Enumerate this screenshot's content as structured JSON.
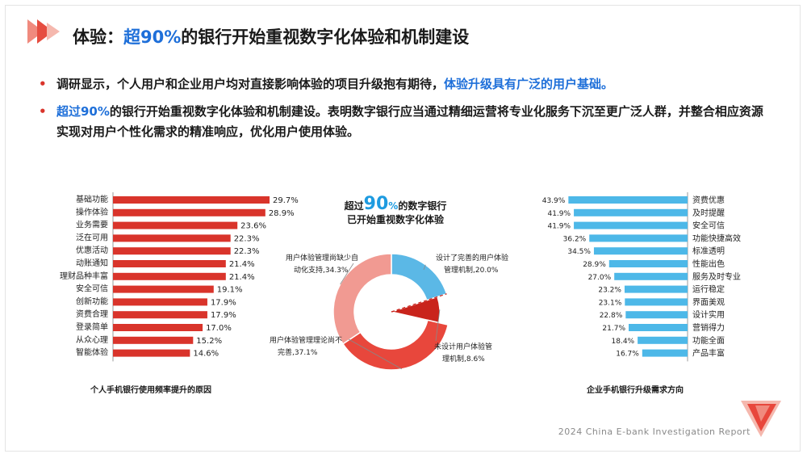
{
  "header": {
    "title_prefix": "体验：",
    "title_highlight": "超90%",
    "title_suffix": "的银行开始重视数字化体验和机制建设"
  },
  "bullets": [
    {
      "text": "调研显示，个人用户和企业用户均对直接影响体验的项目升级抱有期待，",
      "highlight": "体验升级具有广泛的用户基础。"
    },
    {
      "highlight": "超过90%",
      "text": "的银行开始重视数字化体验和机制建设。表明数字银行应当通过精细运营将专业化服务下沉至更广泛人群，并整合相应资源实现对用户个性化需求的精准响应，优化用户使用体验。"
    }
  ],
  "center_title": {
    "prefix": "超过",
    "big": "90",
    "pct": "%",
    "suffix": "的数字银行",
    "line2": "已开始重视数字化体验"
  },
  "footer": {
    "text": "2024 China E-bank Investigation Report"
  },
  "colors": {
    "red": "#d9342b",
    "blue": "#4db8e8",
    "title_blue": "#1e6fd9",
    "pie_pink": "#f19a92",
    "pie_blue": "#5bb8e6",
    "pie_red": "#e8473c",
    "pie_dark_red": "#c9241c"
  },
  "chart_data": [
    {
      "type": "bar",
      "orientation": "horizontal",
      "caption": "个人手机银行使用频率提升的原因",
      "categories": [
        "基础功能",
        "操作体验",
        "业务需要",
        "泛在可用",
        "优惠活动",
        "动账通知",
        "理财品种丰富",
        "安全可信",
        "创新功能",
        "资费合理",
        "登录简单",
        "从众心理",
        "智能体验"
      ],
      "values": [
        29.7,
        28.9,
        23.6,
        22.3,
        22.3,
        21.4,
        21.4,
        19.1,
        17.9,
        17.9,
        17.0,
        15.2,
        14.6
      ],
      "labels": [
        "29.7%",
        "28.9%",
        "23.6%",
        "22.3%",
        "22.3%",
        "21.4%",
        "21.4%",
        "19.1%",
        "17.9%",
        "17.9%",
        "17.0%",
        "15.2%",
        "14.6%"
      ],
      "xlim": [
        0,
        30
      ],
      "grid": false
    },
    {
      "type": "pie",
      "style": "donut",
      "slices": [
        {
          "label_line1": "设计了完善的用户体验",
          "label_line2": "管理机制,20.0%",
          "value": 20.0
        },
        {
          "label_line1": "未设计用户体验管",
          "label_line2": "理机制,8.6%",
          "value": 8.6
        },
        {
          "label_line1": "用户体验管理理论尚不",
          "label_line2": "完善,37.1%",
          "value": 37.1
        },
        {
          "label_line1": "用户体验管理尚缺少自",
          "label_line2": "动化支持,34.3%",
          "value": 34.3
        }
      ]
    },
    {
      "type": "bar",
      "orientation": "horizontal",
      "direction": "right-to-left",
      "caption": "企业手机银行升级需求方向",
      "categories": [
        "资费优惠",
        "及时提醒",
        "安全可信",
        "功能快捷高效",
        "标准透明",
        "性能出色",
        "服务及时专业",
        "运行稳定",
        "界面美观",
        "设计实用",
        "营销得力",
        "功能全面",
        "产品丰富"
      ],
      "values": [
        43.9,
        41.9,
        41.9,
        36.2,
        34.5,
        28.9,
        27.0,
        23.2,
        23.1,
        22.8,
        21.7,
        18.4,
        16.7
      ],
      "labels": [
        "43.9%",
        "41.9%",
        "41.9%",
        "36.2%",
        "34.5%",
        "28.9%",
        "27.0%",
        "23.2%",
        "23.1%",
        "22.8%",
        "21.7%",
        "18.4%",
        "16.7%"
      ],
      "xlim": [
        0,
        44
      ],
      "grid": false
    }
  ]
}
